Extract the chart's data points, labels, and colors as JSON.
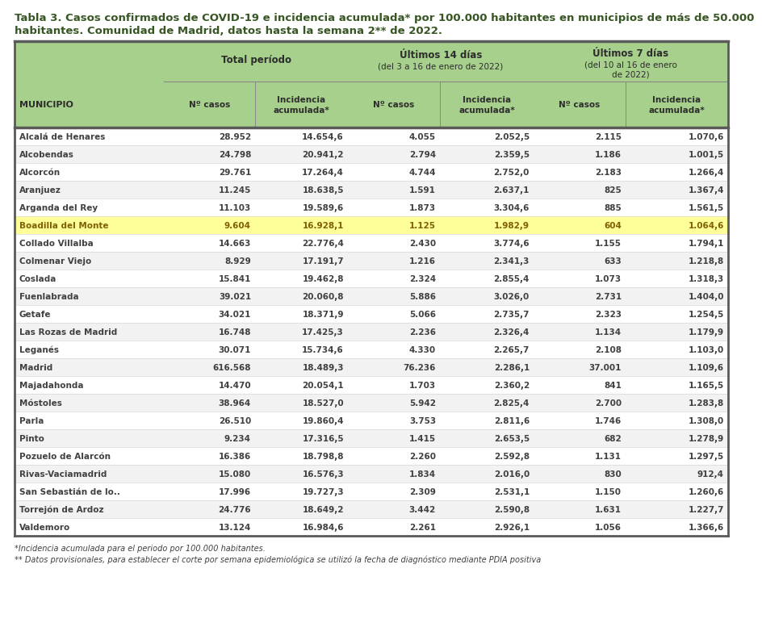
{
  "title_line1": "Tabla 3. Casos confirmados de COVID-19 e incidencia acumulada* por 100.000 habitantes en municipios de más de 50.000",
  "title_line2": "habitantes. Comunidad de Madrid, datos hasta la semana 2** de 2022.",
  "header_bg": "#a8d08d",
  "header_text_color": "#375623",
  "title_color": "#375623",
  "row_bg_even": "#f2f2f2",
  "row_bg_odd": "#ffffff",
  "highlight_row_idx": 5,
  "highlight_bg": "#ffff99",
  "highlight_text": "#7f6000",
  "data_text_color": "#404040",
  "border_color": "#5a5a5a",
  "grid_color": "#c0c0c0",
  "footer1": "*Incidencia acumulada para el periodo por 100.000 habitantes.",
  "footer2": "** Datos provisionales, para establecer el corte por semana epidemiológica se utilizó la fecha de diagnóstico mediante PDIA positiva",
  "rows": [
    [
      "Alcalá de Henares",
      "28.952",
      "14.654,6",
      "4.055",
      "2.052,5",
      "2.115",
      "1.070,6"
    ],
    [
      "Alcobendas",
      "24.798",
      "20.941,2",
      "2.794",
      "2.359,5",
      "1.186",
      "1.001,5"
    ],
    [
      "Alcorcón",
      "29.761",
      "17.264,4",
      "4.744",
      "2.752,0",
      "2.183",
      "1.266,4"
    ],
    [
      "Aranjuez",
      "11.245",
      "18.638,5",
      "1.591",
      "2.637,1",
      "825",
      "1.367,4"
    ],
    [
      "Arganda del Rey",
      "11.103",
      "19.589,6",
      "1.873",
      "3.304,6",
      "885",
      "1.561,5"
    ],
    [
      "Boadilla del Monte",
      "9.604",
      "16.928,1",
      "1.125",
      "1.982,9",
      "604",
      "1.064,6"
    ],
    [
      "Collado Villalba",
      "14.663",
      "22.776,4",
      "2.430",
      "3.774,6",
      "1.155",
      "1.794,1"
    ],
    [
      "Colmenar Viejo",
      "8.929",
      "17.191,7",
      "1.216",
      "2.341,3",
      "633",
      "1.218,8"
    ],
    [
      "Coslada",
      "15.841",
      "19.462,8",
      "2.324",
      "2.855,4",
      "1.073",
      "1.318,3"
    ],
    [
      "Fuenlabrada",
      "39.021",
      "20.060,8",
      "5.886",
      "3.026,0",
      "2.731",
      "1.404,0"
    ],
    [
      "Getafe",
      "34.021",
      "18.371,9",
      "5.066",
      "2.735,7",
      "2.323",
      "1.254,5"
    ],
    [
      "Las Rozas de Madrid",
      "16.748",
      "17.425,3",
      "2.236",
      "2.326,4",
      "1.134",
      "1.179,9"
    ],
    [
      "Leganés",
      "30.071",
      "15.734,6",
      "4.330",
      "2.265,7",
      "2.108",
      "1.103,0"
    ],
    [
      "Madrid",
      "616.568",
      "18.489,3",
      "76.236",
      "2.286,1",
      "37.001",
      "1.109,6"
    ],
    [
      "Majadahonda",
      "14.470",
      "20.054,1",
      "1.703",
      "2.360,2",
      "841",
      "1.165,5"
    ],
    [
      "Móstoles",
      "38.964",
      "18.527,0",
      "5.942",
      "2.825,4",
      "2.700",
      "1.283,8"
    ],
    [
      "Parla",
      "26.510",
      "19.860,4",
      "3.753",
      "2.811,6",
      "1.746",
      "1.308,0"
    ],
    [
      "Pinto",
      "9.234",
      "17.316,5",
      "1.415",
      "2.653,5",
      "682",
      "1.278,9"
    ],
    [
      "Pozuelo de Alarcón",
      "16.386",
      "18.798,8",
      "2.260",
      "2.592,8",
      "1.131",
      "1.297,5"
    ],
    [
      "Rivas-Vaciamadrid",
      "15.080",
      "16.576,3",
      "1.834",
      "2.016,0",
      "830",
      "912,4"
    ],
    [
      "San Sebastián de lo..",
      "17.996",
      "19.727,3",
      "2.309",
      "2.531,1",
      "1.150",
      "1.260,6"
    ],
    [
      "Torrejón de Ardoz",
      "24.776",
      "18.649,2",
      "3.442",
      "2.590,8",
      "1.631",
      "1.227,7"
    ],
    [
      "Valdemoro",
      "13.124",
      "16.984,6",
      "2.261",
      "2.926,1",
      "1.056",
      "1.366,6"
    ]
  ]
}
